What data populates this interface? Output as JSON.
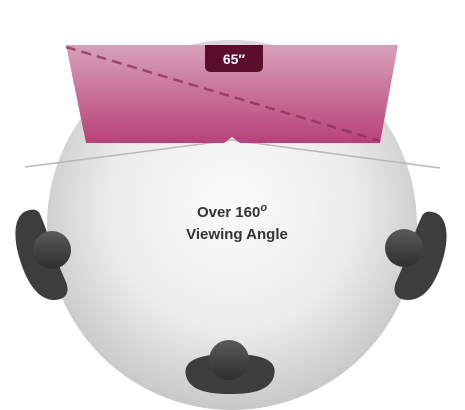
{
  "tv": {
    "size_label": "65″"
  },
  "caption": {
    "line1_prefix": "Over 160",
    "line1_degree": "o",
    "line2": "Viewing Angle"
  },
  "colors": {
    "screen_top": "#d39ab4",
    "screen_bottom": "#b93f73",
    "size_badge": "#5b0e2c",
    "floor_center": "#f7f7f7",
    "floor_edge": "#cfcfcf",
    "viewer": "#3f3f3f"
  }
}
